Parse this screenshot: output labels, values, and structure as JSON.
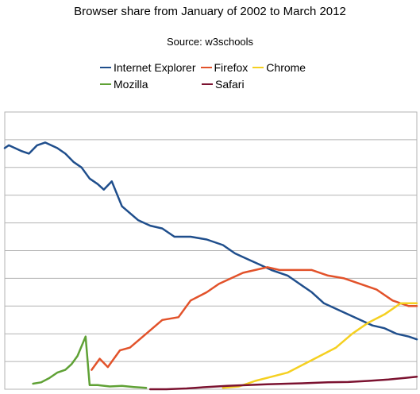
{
  "chart_data": {
    "type": "line",
    "title": "Browser share from January of 2002 to March 2012",
    "subtitle": "Source: w3schools",
    "xlabel": "",
    "ylabel": "",
    "ylim": [
      0,
      100
    ],
    "grid": true,
    "legend_position": "top",
    "series": [
      {
        "name": "Internet Explorer",
        "color": "#1f4e8c",
        "points": [
          [
            0,
            87
          ],
          [
            0.1,
            88
          ],
          [
            0.4,
            86
          ],
          [
            0.6,
            85
          ],
          [
            0.8,
            88
          ],
          [
            1.0,
            89
          ],
          [
            1.3,
            87
          ],
          [
            1.5,
            85
          ],
          [
            1.7,
            82
          ],
          [
            1.9,
            80
          ],
          [
            2.1,
            76
          ],
          [
            2.3,
            74
          ],
          [
            2.45,
            72
          ],
          [
            2.65,
            75
          ],
          [
            2.9,
            66
          ],
          [
            3.3,
            61
          ],
          [
            3.6,
            59
          ],
          [
            3.9,
            58
          ],
          [
            4.2,
            55
          ],
          [
            4.6,
            55
          ],
          [
            5.0,
            54
          ],
          [
            5.4,
            52
          ],
          [
            5.7,
            49
          ],
          [
            6.0,
            47
          ],
          [
            6.3,
            45
          ],
          [
            6.6,
            43
          ],
          [
            7.0,
            41
          ],
          [
            7.3,
            38
          ],
          [
            7.6,
            35
          ],
          [
            7.9,
            31
          ],
          [
            8.2,
            29
          ],
          [
            8.5,
            27
          ],
          [
            8.8,
            25
          ],
          [
            9.1,
            23
          ],
          [
            9.4,
            22
          ],
          [
            9.7,
            20
          ],
          [
            10.0,
            19
          ],
          [
            10.2,
            18
          ]
        ]
      },
      {
        "name": "Firefox",
        "color": "#e2522a",
        "points": [
          [
            2.15,
            7
          ],
          [
            2.35,
            11
          ],
          [
            2.55,
            8
          ],
          [
            2.85,
            14
          ],
          [
            3.1,
            15
          ],
          [
            3.5,
            20
          ],
          [
            3.9,
            25
          ],
          [
            4.3,
            26
          ],
          [
            4.6,
            32
          ],
          [
            5.0,
            35
          ],
          [
            5.3,
            38
          ],
          [
            5.6,
            40
          ],
          [
            5.9,
            42
          ],
          [
            6.2,
            43
          ],
          [
            6.5,
            44
          ],
          [
            6.8,
            43
          ],
          [
            7.2,
            43
          ],
          [
            7.6,
            43
          ],
          [
            8.0,
            41
          ],
          [
            8.4,
            40
          ],
          [
            8.8,
            38
          ],
          [
            9.2,
            36
          ],
          [
            9.6,
            32
          ],
          [
            10.0,
            30
          ],
          [
            10.2,
            30
          ]
        ]
      },
      {
        "name": "Chrome",
        "color": "#f5d021",
        "points": [
          [
            5.4,
            0.5
          ],
          [
            5.8,
            1
          ],
          [
            6.2,
            3
          ],
          [
            6.6,
            4.5
          ],
          [
            7.0,
            6
          ],
          [
            7.4,
            9
          ],
          [
            7.8,
            12
          ],
          [
            8.2,
            15
          ],
          [
            8.6,
            20
          ],
          [
            9.0,
            24
          ],
          [
            9.4,
            27
          ],
          [
            9.8,
            31
          ],
          [
            10.2,
            31
          ]
        ]
      },
      {
        "name": "Mozilla",
        "color": "#5fa135",
        "points": [
          [
            0.7,
            2
          ],
          [
            0.9,
            2.5
          ],
          [
            1.1,
            4
          ],
          [
            1.3,
            6
          ],
          [
            1.5,
            7
          ],
          [
            1.65,
            9
          ],
          [
            1.8,
            12
          ],
          [
            2.0,
            19
          ],
          [
            2.1,
            1.5
          ],
          [
            2.3,
            1.5
          ],
          [
            2.6,
            1
          ],
          [
            2.9,
            1.2
          ],
          [
            3.2,
            0.8
          ],
          [
            3.5,
            0.5
          ]
        ]
      },
      {
        "name": "Safari",
        "color": "#7b1230",
        "points": [
          [
            3.6,
            0
          ],
          [
            4.0,
            0
          ],
          [
            4.5,
            0.3
          ],
          [
            5.0,
            0.8
          ],
          [
            5.5,
            1.2
          ],
          [
            6.0,
            1.5
          ],
          [
            6.5,
            1.8
          ],
          [
            7.0,
            2.0
          ],
          [
            7.5,
            2.2
          ],
          [
            8.0,
            2.5
          ],
          [
            8.5,
            2.6
          ],
          [
            9.0,
            3.0
          ],
          [
            9.5,
            3.5
          ],
          [
            10.2,
            4.5
          ]
        ]
      }
    ]
  }
}
